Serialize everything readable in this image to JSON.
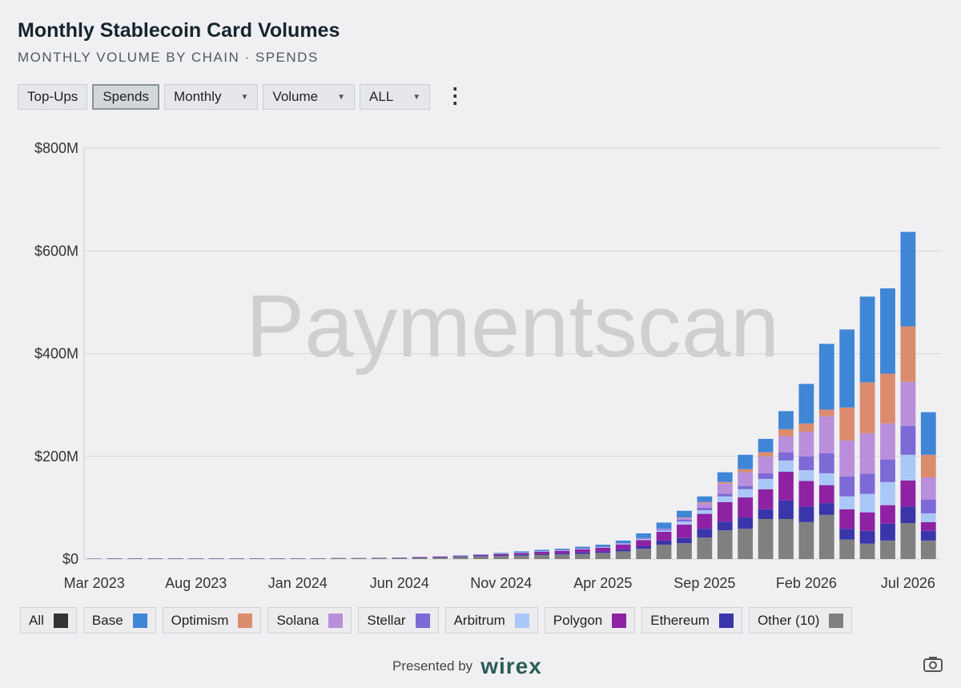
{
  "chart_data": {
    "type": "bar",
    "stacked": true,
    "title": "Monthly Stablecoin Card Volumes",
    "subtitle": "MONTHLY VOLUME BY CHAIN · SPENDS",
    "watermark": "Paymentscan",
    "categories": [
      "Mar 2023",
      null,
      null,
      null,
      null,
      "Aug 2023",
      null,
      null,
      null,
      null,
      "Jan 2024",
      null,
      null,
      null,
      null,
      "Jun 2024",
      null,
      null,
      null,
      null,
      "Nov 2024",
      null,
      null,
      null,
      null,
      "Apr 2025",
      null,
      null,
      null,
      null,
      "Sep 2025",
      null,
      null,
      null,
      null,
      "Feb 2026",
      null,
      null,
      null,
      null,
      "Jul 2026",
      null
    ],
    "series": [
      {
        "name": "Base",
        "color": "#3f86d6",
        "values": [
          0,
          0,
          0,
          0,
          0,
          0,
          0,
          0,
          0,
          0,
          0,
          0,
          0,
          0,
          0,
          0,
          0,
          0,
          1,
          1,
          1,
          2,
          2,
          2,
          3,
          4,
          5,
          9,
          12,
          13,
          11,
          19,
          28,
          26,
          35,
          77,
          128,
          152,
          167,
          166,
          184,
          83
        ]
      },
      {
        "name": "Optimism",
        "color": "#db8c6f",
        "values": [
          0,
          0,
          0,
          0,
          0,
          0,
          0,
          0,
          0,
          0,
          0,
          0,
          0,
          0,
          0,
          0,
          0,
          0,
          0,
          0,
          0,
          0,
          0,
          0,
          0,
          0,
          0,
          0,
          0,
          1,
          2,
          3,
          6,
          8,
          14,
          16,
          13,
          64,
          99,
          97,
          108,
          44
        ]
      },
      {
        "name": "Solana",
        "color": "#b98fdb",
        "values": [
          0,
          0,
          0,
          0,
          0,
          0,
          0,
          0,
          0,
          0,
          0,
          0,
          0,
          0,
          0,
          0,
          0,
          0,
          0,
          0,
          0,
          0,
          0,
          0,
          0,
          0,
          1,
          1,
          1,
          3,
          9,
          20,
          27,
          33,
          31,
          48,
          72,
          70,
          79,
          70,
          86,
          43
        ]
      },
      {
        "name": "Stellar",
        "color": "#7d6ad6",
        "values": [
          0,
          0,
          0,
          0,
          0,
          0,
          0,
          0,
          0,
          0,
          0,
          0,
          0,
          0,
          0,
          0,
          0,
          0,
          0,
          0,
          0,
          0,
          1,
          1,
          1,
          1,
          1,
          1,
          2,
          4,
          5,
          5,
          6,
          11,
          16,
          27,
          39,
          39,
          39,
          44,
          56,
          27
        ]
      },
      {
        "name": "Arbitrum",
        "color": "#a9c8f7",
        "values": [
          0,
          0,
          0,
          0,
          0,
          0,
          0,
          0,
          0,
          0,
          0,
          0,
          0,
          0,
          0,
          0,
          0,
          0,
          0,
          0,
          1,
          1,
          1,
          1,
          1,
          1,
          1,
          2,
          3,
          6,
          7,
          11,
          16,
          20,
          22,
          21,
          23,
          25,
          36,
          45,
          50,
          17
        ]
      },
      {
        "name": "Polygon",
        "color": "#8e22a3",
        "values": [
          0,
          0,
          0,
          0,
          0,
          0,
          0,
          0,
          0,
          0,
          0,
          0,
          0,
          0,
          0.5,
          0.5,
          1,
          1,
          1,
          2,
          3,
          3,
          4,
          5,
          6,
          7,
          9,
          12,
          17,
          26,
          29,
          38,
          39,
          39,
          56,
          50,
          35,
          38,
          36,
          36,
          51,
          17
        ]
      },
      {
        "name": "Ethereum",
        "color": "#3a35a9",
        "values": [
          0.5,
          0.5,
          0.5,
          0.5,
          0.5,
          0.5,
          0.5,
          0.5,
          0.5,
          0.5,
          0.5,
          0.5,
          0.5,
          0.5,
          0.5,
          0.5,
          1,
          1,
          1,
          1,
          1,
          2,
          2,
          2,
          3,
          3,
          4,
          5,
          8,
          10,
          17,
          17,
          22,
          19,
          36,
          30,
          23,
          21,
          25,
          33,
          32,
          19
        ]
      },
      {
        "name": "Other (10)",
        "color": "#808080",
        "values": [
          0.5,
          1,
          1,
          1,
          1,
          1,
          1,
          1,
          1,
          1,
          1,
          1,
          1.5,
          1.5,
          1.5,
          2,
          2,
          3,
          4,
          5,
          6,
          7,
          8,
          9,
          10,
          12,
          15,
          20,
          28,
          31,
          42,
          56,
          59,
          78,
          78,
          72,
          86,
          38,
          30,
          36,
          70,
          36
        ]
      }
    ],
    "ylim": [
      0,
      800
    ],
    "yticks": [
      {
        "value": 0,
        "label": "$0"
      },
      {
        "value": 200,
        "label": "$200M"
      },
      {
        "value": 400,
        "label": "$400M"
      },
      {
        "value": 600,
        "label": "$600M"
      },
      {
        "value": 800,
        "label": "$800M"
      }
    ],
    "grid": true,
    "legend_all": {
      "name": "All",
      "color": "#333333"
    }
  },
  "controls": [
    "Top-Ups",
    "Spends",
    "Monthly",
    "Volume",
    "ALL"
  ],
  "footer": {
    "presented_by": "Presented by",
    "brand": "wirex"
  }
}
